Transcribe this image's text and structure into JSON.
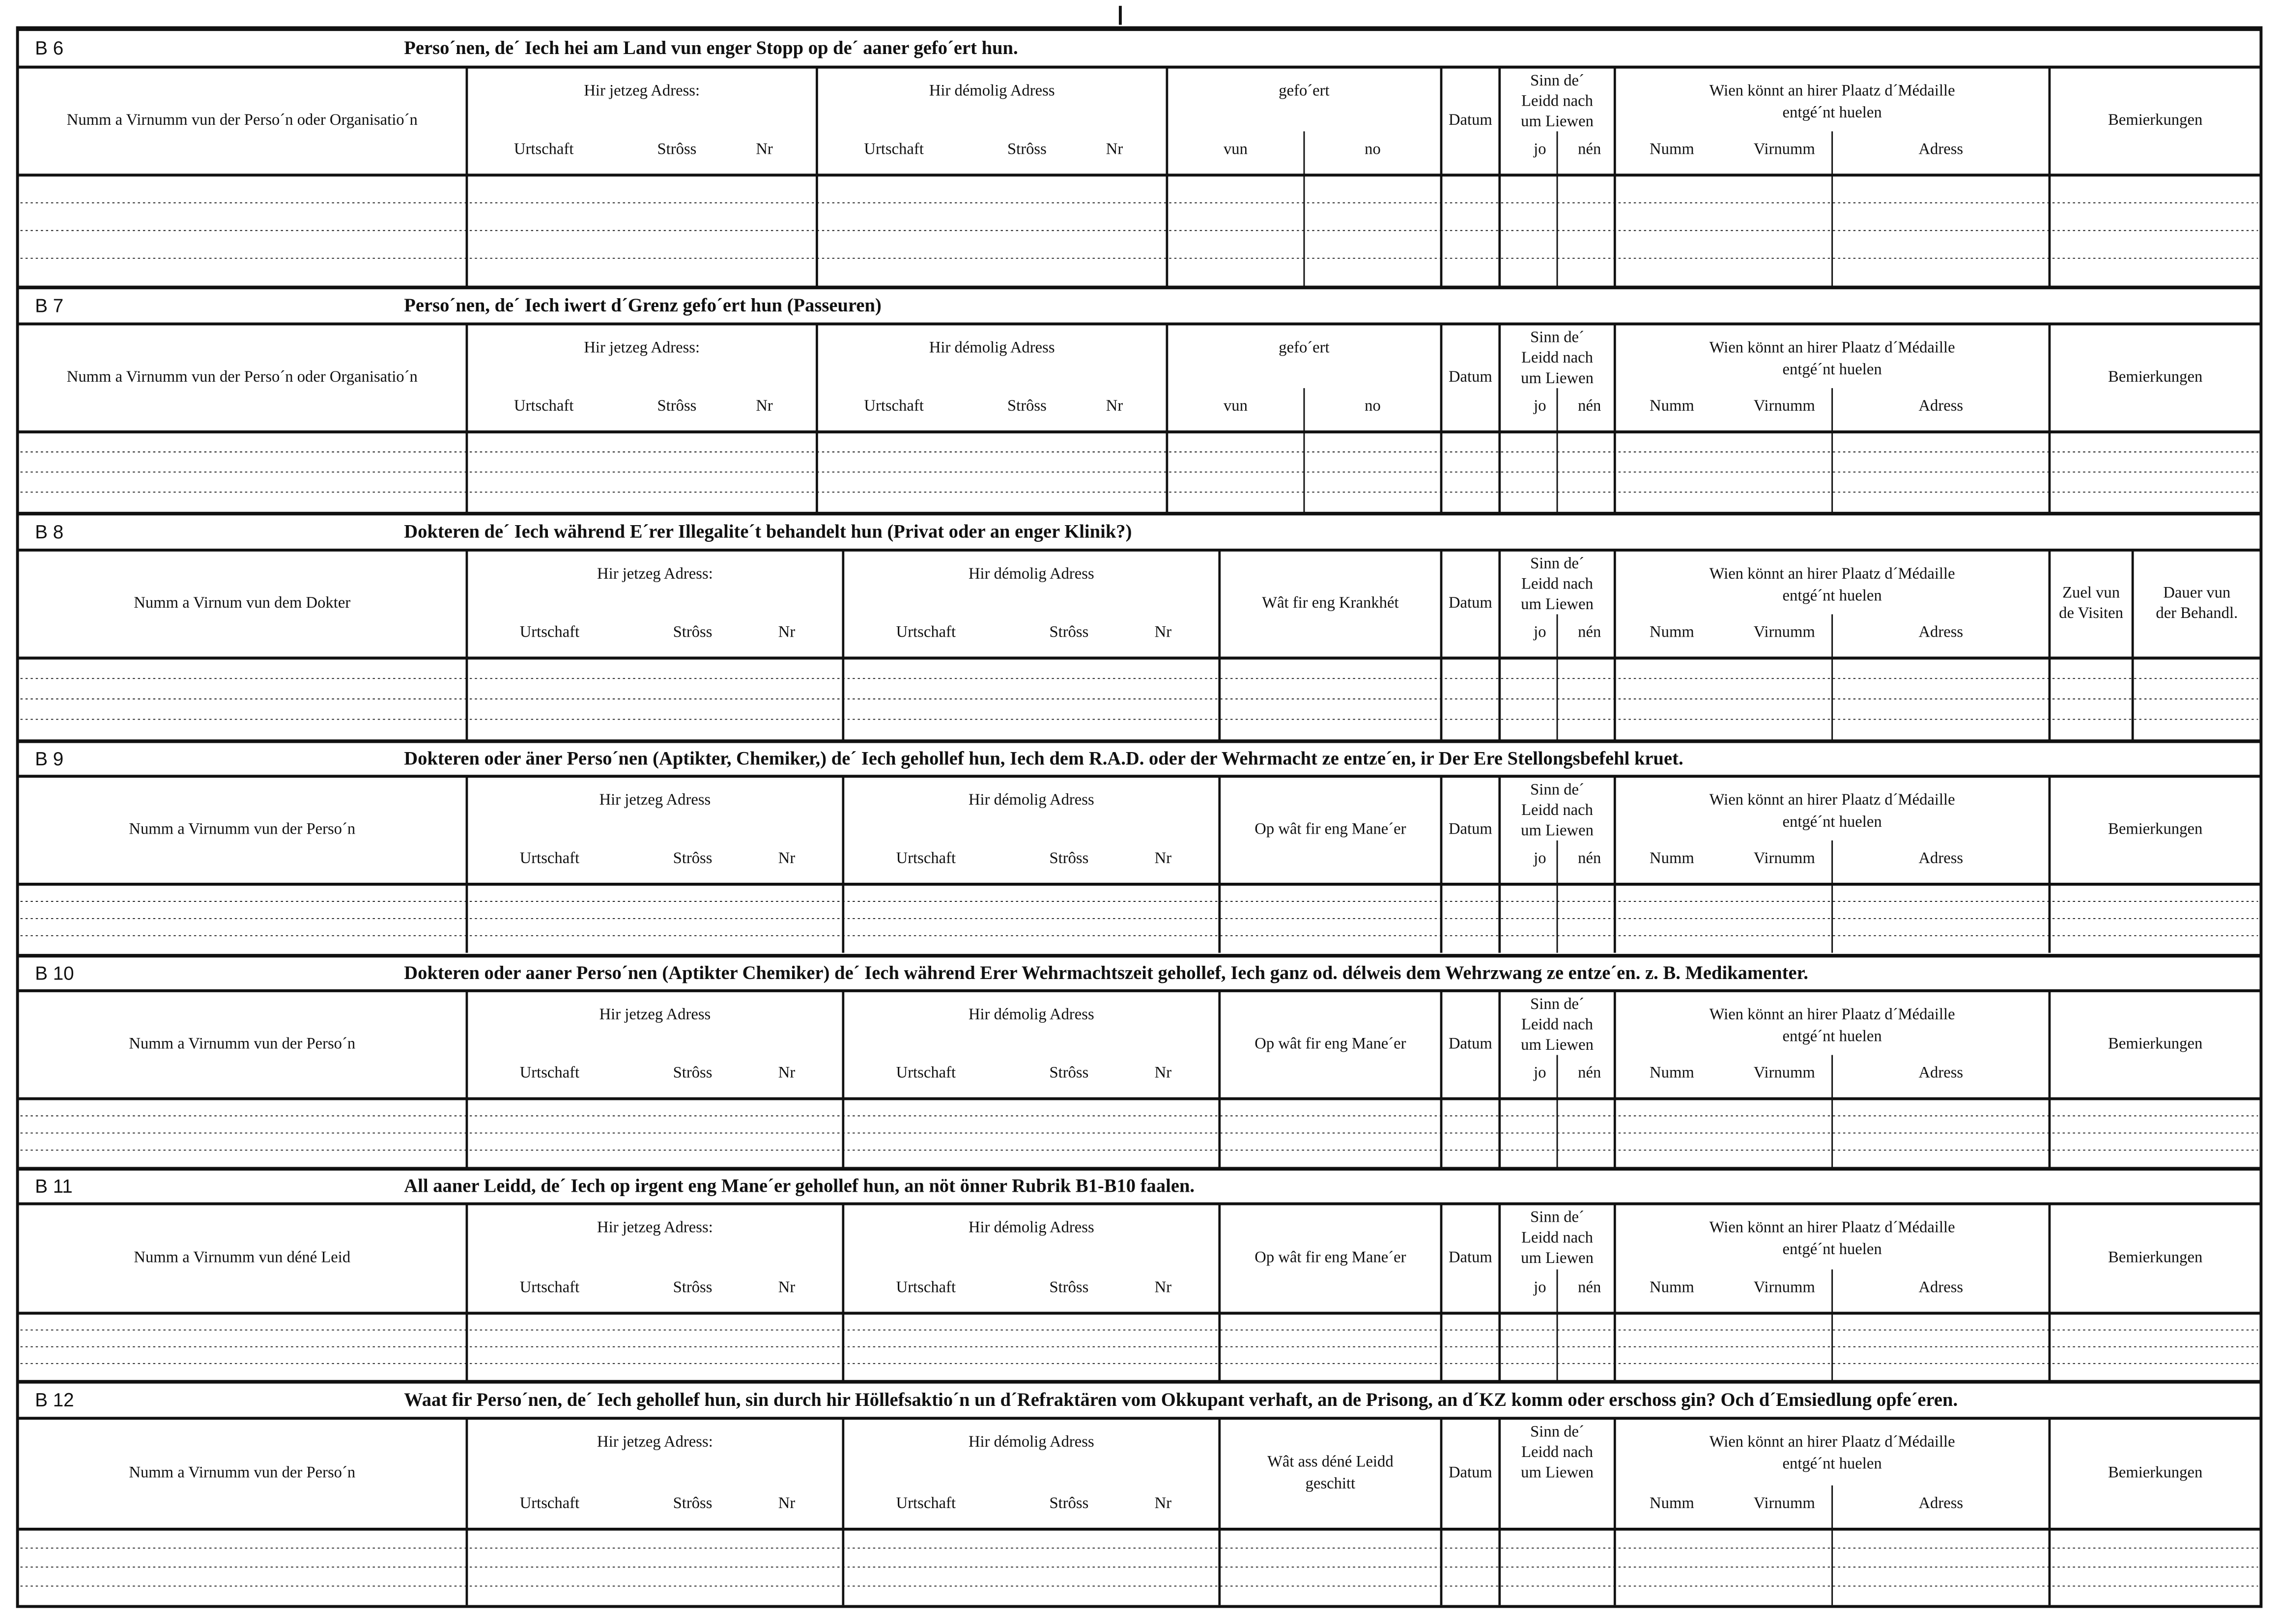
{
  "sections": [
    {
      "code": "B 6",
      "title": "Perso´nen, de´ Iech hei am Land vun enger Stopp  op de´ aaner gefo´ert hun.",
      "columns": [
        {
          "lines": [
            "Numm a Virnumm vun der Perso´n oder Organisatio´n"
          ]
        },
        {
          "lines": [
            "Hir jetzeg Adress:"
          ],
          "sub": [
            "Urtschaft",
            "Strôss",
            "Nr"
          ]
        },
        {
          "lines": [
            "Hir démolig Adress"
          ],
          "sub": [
            "Urtschaft",
            "Strôss",
            "Nr"
          ]
        },
        {
          "lines": [
            "gefo´ert"
          ],
          "sub": [
            "vun",
            "no"
          ]
        },
        {
          "lines": [
            "Datum"
          ]
        },
        {
          "lines": [
            "Sinn de´",
            "Leidd nach",
            "um Liewen"
          ],
          "sub": [
            "jo",
            "nén"
          ]
        },
        {
          "lines": [
            "Wien könnt an hirer Plaatz d´Médaille",
            "entgé´nt huelen"
          ],
          "sub": [
            "Numm",
            "Virnumm",
            "Adress"
          ]
        },
        {
          "lines": [
            "Bemierkungen"
          ]
        }
      ]
    },
    {
      "code": "B 7",
      "title": "Perso´nen, de´ Iech iwert d´Grenz gefo´ert hun (Passeuren)",
      "columns": [
        {
          "lines": [
            "Numm a Virnumm vun der Perso´n oder Organisatio´n"
          ]
        },
        {
          "lines": [
            "Hir jetzeg Adress:"
          ],
          "sub": [
            "Urtschaft",
            "Strôss",
            "Nr"
          ]
        },
        {
          "lines": [
            "Hir démolig Adress"
          ],
          "sub": [
            "Urtschaft",
            "Strôss",
            "Nr"
          ]
        },
        {
          "lines": [
            "gefo´ert"
          ],
          "sub": [
            "vun",
            "no"
          ]
        },
        {
          "lines": [
            "Datum"
          ]
        },
        {
          "lines": [
            "Sinn de´",
            "Leidd nach",
            "um Liewen"
          ],
          "sub": [
            "jo",
            "nén"
          ]
        },
        {
          "lines": [
            "Wien könnt an hirer Plaatz d´Médaille",
            "entgé´nt huelen"
          ],
          "sub": [
            "Numm",
            "Virnumm",
            "Adress"
          ]
        },
        {
          "lines": [
            "Bemierkungen"
          ]
        }
      ]
    },
    {
      "code": "B 8",
      "title": "Dokteren de´ Iech während E´rer Illegalite´t behandelt hun (Privat  oder  an enger Klinik?)",
      "columns": [
        {
          "lines": [
            "Numm a Virnum vun dem Dokter"
          ]
        },
        {
          "lines": [
            "Hir jetzeg Adress:"
          ],
          "sub": [
            "Urtschaft",
            "Strôss",
            "Nr"
          ]
        },
        {
          "lines": [
            "Hir démolig Adress"
          ],
          "sub": [
            "Urtschaft",
            "Strôss",
            "Nr"
          ]
        },
        {
          "lines": [
            "Wât fir eng Krankhét"
          ]
        },
        {
          "lines": [
            "Datum"
          ]
        },
        {
          "lines": [
            "Sinn de´",
            "Leidd nach",
            "um Liewen"
          ],
          "sub": [
            "jo",
            "nén"
          ]
        },
        {
          "lines": [
            "Wien könnt an hirer Plaatz d´Médaille",
            "entgé´nt huelen"
          ],
          "sub": [
            "Numm",
            "Virnumm",
            "Adress"
          ]
        },
        {
          "lines": [
            "Zuel vun",
            "de Visiten"
          ]
        },
        {
          "lines": [
            "Dauer vun",
            "der Behandl."
          ]
        }
      ]
    },
    {
      "code": "B 9",
      "title": "Dokteren oder äner Perso´nen (Aptikter, Chemiker,) de´ Iech gehollef hun, Iech dem R.A.D. oder der Wehrmacht ze entze´en, ir Der Ere Stellongsbefehl kruet.",
      "columns": [
        {
          "lines": [
            "Numm a Virnumm vun der Perso´n"
          ]
        },
        {
          "lines": [
            "Hir jetzeg Adress"
          ],
          "sub": [
            "Urtschaft",
            "Strôss",
            "Nr"
          ]
        },
        {
          "lines": [
            "Hir démolig Adress"
          ],
          "sub": [
            "Urtschaft",
            "Strôss",
            "Nr"
          ]
        },
        {
          "lines": [
            "Op wât fir eng Mane´er"
          ]
        },
        {
          "lines": [
            "Datum"
          ]
        },
        {
          "lines": [
            "Sinn de´",
            "Leidd nach",
            "um Liewen"
          ],
          "sub": [
            "jo",
            "nén"
          ]
        },
        {
          "lines": [
            "Wien könnt an hirer Plaatz d´Médaille",
            "entgé´nt huelen"
          ],
          "sub": [
            "Numm",
            "Virnumm",
            "Adress"
          ]
        },
        {
          "lines": [
            "Bemierkungen"
          ]
        }
      ]
    },
    {
      "code": "B 10",
      "title": "Dokteren oder aaner Perso´nen (Aptikter Chemiker) de´ Iech während Erer Wehrmachtszeit gehollef, Iech ganz od. délweis dem Wehrzwang ze entze´en. z. B. Medikamenter.",
      "columns": [
        {
          "lines": [
            "Numm a Virnumm vun der Perso´n"
          ]
        },
        {
          "lines": [
            "Hir jetzeg Adress"
          ],
          "sub": [
            "Urtschaft",
            "Strôss",
            "Nr"
          ]
        },
        {
          "lines": [
            "Hir démolig Adress"
          ],
          "sub": [
            "Urtschaft",
            "Strôss",
            "Nr"
          ]
        },
        {
          "lines": [
            "Op wât fir eng Mane´er"
          ]
        },
        {
          "lines": [
            "Datum"
          ]
        },
        {
          "lines": [
            "Sinn de´",
            "Leidd nach",
            "um Liewen"
          ],
          "sub": [
            "jo",
            "nén"
          ]
        },
        {
          "lines": [
            "Wien könnt an hirer Plaatz d´Médaille",
            "entgé´nt huelen"
          ],
          "sub": [
            "Numm",
            "Virnumm",
            "Adress"
          ]
        },
        {
          "lines": [
            "Bemierkungen"
          ]
        }
      ]
    },
    {
      "code": "B 11",
      "title": "All aaner Leidd, de´ Iech op irgent eng Mane´er  gehollef hun, an nöt önner Rubrik B1-B10 faalen.",
      "columns": [
        {
          "lines": [
            "Numm a Virnumm vun déné Leid"
          ]
        },
        {
          "lines": [
            "Hir jetzeg Adress:"
          ],
          "sub": [
            "Urtschaft",
            "Strôss",
            "Nr"
          ]
        },
        {
          "lines": [
            "Hir démolig Adress"
          ],
          "sub": [
            "Urtschaft",
            "Strôss",
            "Nr"
          ]
        },
        {
          "lines": [
            "Op wât fir eng Mane´er"
          ]
        },
        {
          "lines": [
            "Datum"
          ]
        },
        {
          "lines": [
            "Sinn de´",
            "Leidd nach",
            "um Liewen"
          ],
          "sub": [
            "jo",
            "nén"
          ]
        },
        {
          "lines": [
            "Wien könnt an hirer Plaatz d´Médaille",
            "entgé´nt huelen"
          ],
          "sub": [
            "Numm",
            "Virnumm",
            "Adress"
          ]
        },
        {
          "lines": [
            "Bemierkungen"
          ]
        }
      ]
    },
    {
      "code": "B 12",
      "title": "Waat fir Perso´nen, de´ Iech gehollef hun, sin durch hir Höllefsaktio´n un d´Refraktären vom Okkupant verhaft, an de Prisong, an d´KZ komm oder  erschoss gin? Och d´Emsiedlung opfe´eren.",
      "columns": [
        {
          "lines": [
            "Numm a Virnumm vun der Perso´n"
          ]
        },
        {
          "lines": [
            "Hir jetzeg Adress:"
          ],
          "sub": [
            "Urtschaft",
            "Strôss",
            "Nr"
          ]
        },
        {
          "lines": [
            "Hir démolig Adress"
          ],
          "sub": [
            "Urtschaft",
            "Strôss",
            "Nr"
          ]
        },
        {
          "lines": [
            "Wât ass déné Leidd",
            "geschitt"
          ]
        },
        {
          "lines": [
            "Datum"
          ]
        },
        {
          "lines": [
            "Sinn de´",
            "Leidd nach",
            "um Liewen"
          ]
        },
        {
          "lines": [
            "Wien könnt an hirer Plaatz d´Médaille",
            "entgé´nt huelen"
          ],
          "sub": [
            "Numm",
            "Virnumm",
            "Adress"
          ]
        },
        {
          "lines": [
            "Bemierkungen"
          ]
        }
      ]
    }
  ]
}
